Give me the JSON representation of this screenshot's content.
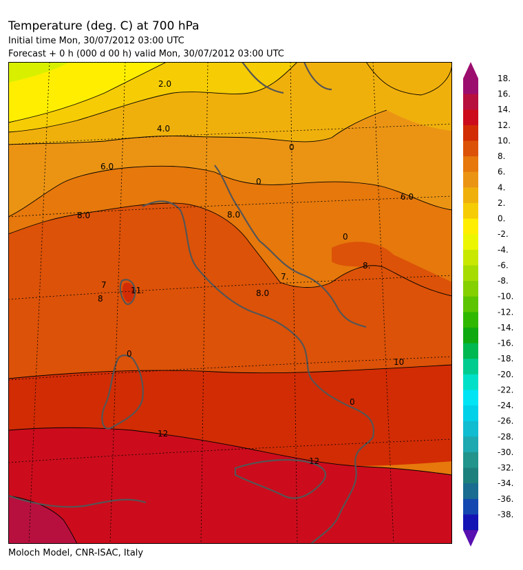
{
  "header": {
    "title": "Temperature (deg. C) at 700 hPa",
    "initial_time": "Initial time  Mon, 30/07/2012  03:00 UTC",
    "forecast": "Forecast  +    0 h  (000 d 00 h)  valid Mon, 30/07/2012 03:00 UTC"
  },
  "footer": {
    "credit": "Moloch Model, CNR-ISAC, Italy"
  },
  "contour_labels": [
    "2.0",
    "4.0",
    "6.0",
    "8.0",
    "8.0",
    "0",
    "0",
    "6.0",
    "0",
    "8.",
    "7",
    "11.",
    "8",
    "7.",
    "8.0",
    "0",
    "10",
    "12",
    "12",
    "0"
  ],
  "colorbar": {
    "labels": [
      "18.",
      "16.",
      "14.",
      "12.",
      "10.",
      "8.",
      "6.",
      "4.",
      "2.",
      "0.",
      "-2.",
      "-4.",
      "-6.",
      "-8.",
      "-10.",
      "-12.",
      "-14.",
      "-16.",
      "-18.",
      "-20.",
      "-22.",
      "-24.",
      "-26.",
      "-28.",
      "-30.",
      "-32.",
      "-34.",
      "-36.",
      "-38."
    ],
    "colors": [
      "#9c0e6e",
      "#b8103e",
      "#cc0c1c",
      "#d22c04",
      "#dc5208",
      "#e6780c",
      "#eb9414",
      "#f0b00c",
      "#f6cc04",
      "#ffee00",
      "#ecf600",
      "#c8e800",
      "#a6dc00",
      "#84d000",
      "#5cc400",
      "#30b800",
      "#10aa10",
      "#00b850",
      "#00cc90",
      "#00e0c8",
      "#00e4f4",
      "#00d0e8",
      "#10bcd0",
      "#1ea8b0",
      "#22948c",
      "#1e807c",
      "#1a6c90",
      "#1448b0",
      "#1414b4"
    ],
    "arrow_top_color": "#9c0e6e",
    "arrow_bottom_color": "#5810b0"
  }
}
